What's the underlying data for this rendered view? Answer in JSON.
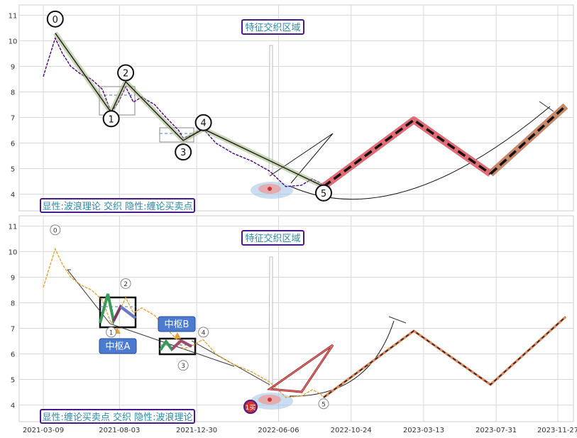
{
  "chart_data": [
    {
      "type": "line",
      "panel": "top",
      "x_tick_labels": [],
      "y_ticks": [
        4,
        5,
        6,
        7,
        8,
        9,
        10,
        11
      ],
      "ylim": [
        3.35,
        11.4
      ],
      "x_dates": [
        "2021-03-09",
        "2021-08-03",
        "2021-12-30",
        "2022-06-06",
        "2022-10-24",
        "2023-03-13",
        "2023-07-31",
        "2023-11-27"
      ],
      "grid": true,
      "annotations": {
        "region_title": "特征交织区域",
        "bottom_caption": "显性:波浪理论 交织 隐性:缠论买卖点",
        "wave_labels": [
          {
            "text": "0",
            "date": "2021-04-01",
            "y": 10.85
          },
          {
            "text": "1",
            "date": "2021-07-18",
            "y": 6.95
          },
          {
            "text": "2",
            "date": "2021-08-15",
            "y": 8.75
          },
          {
            "text": "3",
            "date": "2021-12-04",
            "y": 5.65
          },
          {
            "text": "4",
            "date": "2022-01-12",
            "y": 6.8
          },
          {
            "text": "5",
            "date": "2022-09-01",
            "y": 4.05
          }
        ]
      },
      "series": [
        {
          "role": "price",
          "color": "#4b0082",
          "x": [
            "2021-03-09",
            "2021-03-18",
            "2021-04-01",
            "2021-04-15",
            "2021-05-01",
            "2021-05-20",
            "2021-06-10",
            "2021-07-01",
            "2021-07-18",
            "2021-08-01",
            "2021-08-15",
            "2021-08-30",
            "2021-09-15",
            "2021-10-10",
            "2021-11-01",
            "2021-11-25",
            "2021-12-04",
            "2021-12-20",
            "2022-01-05",
            "2022-01-12",
            "2022-02-05",
            "2022-03-10",
            "2022-04-15",
            "2022-05-20",
            "2022-06-20",
            "2022-07-20",
            "2022-08-10",
            "2022-08-25",
            "2022-09-01"
          ],
          "y": [
            8.6,
            9.2,
            10.1,
            9.5,
            9.0,
            8.7,
            8.5,
            8.1,
            7.2,
            7.6,
            8.2,
            7.6,
            7.8,
            7.5,
            7.0,
            6.5,
            6.2,
            6.3,
            6.5,
            6.55,
            6.0,
            5.6,
            5.3,
            4.9,
            4.3,
            4.35,
            4.6,
            4.45,
            4.3
          ]
        },
        {
          "role": "wave",
          "color": "#1a1a1a",
          "x": [
            "2021-04-01",
            "2021-07-18",
            "2021-08-15",
            "2021-12-04",
            "2022-01-12",
            "2022-09-01"
          ],
          "y": [
            10.3,
            7.2,
            8.4,
            6.1,
            6.55,
            4.3
          ]
        },
        {
          "role": "forecast",
          "color": "#e06b75",
          "x": [
            "2022-09-01",
            "2023-02-22",
            "2023-07-20",
            "2023-12-12"
          ],
          "y": [
            4.3,
            6.9,
            4.8,
            7.45
          ]
        }
      ]
    },
    {
      "type": "line",
      "panel": "bottom",
      "x_tick_labels": [
        "2021-03-09",
        "2021-08-03",
        "2021-12-30",
        "2022-06-06",
        "2022-10-24",
        "2023-03-13",
        "2023-07-31",
        "2023-11-27"
      ],
      "y_ticks": [
        4,
        5,
        6,
        7,
        8,
        9,
        10,
        11
      ],
      "ylim": [
        3.35,
        11.4
      ],
      "grid": true,
      "annotations": {
        "region_title": "特征交织区域",
        "bottom_caption": "显性:缠论买卖点 交织 隐性:波浪理论",
        "pivot_labels": [
          "中枢A",
          "中枢B"
        ],
        "wave_labels": [
          {
            "text": "0",
            "date": "2021-04-01",
            "y": 10.85
          },
          {
            "text": "1",
            "date": "2021-07-18",
            "y": 6.85
          },
          {
            "text": "2",
            "date": "2021-08-15",
            "y": 8.75
          },
          {
            "text": "3",
            "date": "2021-12-04",
            "y": 5.55
          },
          {
            "text": "4",
            "date": "2022-01-12",
            "y": 6.85
          },
          {
            "text": "5",
            "date": "2022-09-01",
            "y": 4.05
          }
        ],
        "buy_point_label": "1买"
      },
      "series": [
        {
          "role": "price",
          "color": "#e8a33a",
          "x": [
            "2021-03-09",
            "2021-03-18",
            "2021-04-01",
            "2021-04-15",
            "2021-05-01",
            "2021-05-20",
            "2021-06-10",
            "2021-07-01",
            "2021-07-18",
            "2021-08-01",
            "2021-08-15",
            "2021-08-30",
            "2021-09-15",
            "2021-10-10",
            "2021-11-01",
            "2021-11-25",
            "2021-12-04",
            "2021-12-20",
            "2022-01-05",
            "2022-01-12",
            "2022-02-05",
            "2022-03-10",
            "2022-04-15",
            "2022-05-20",
            "2022-06-20",
            "2022-07-20",
            "2022-08-10",
            "2022-08-25",
            "2022-09-01"
          ],
          "y": [
            8.6,
            9.2,
            10.1,
            9.5,
            9.0,
            8.7,
            8.5,
            8.1,
            7.2,
            7.6,
            8.2,
            7.6,
            7.8,
            7.5,
            7.0,
            6.5,
            6.2,
            6.3,
            6.5,
            6.55,
            6.0,
            5.6,
            5.3,
            4.9,
            4.3,
            4.35,
            4.6,
            4.45,
            4.3
          ]
        },
        {
          "role": "forecast",
          "color": "#e08a60",
          "x": [
            "2022-09-01",
            "2023-02-22",
            "2023-07-20",
            "2023-12-12"
          ],
          "y": [
            4.3,
            6.9,
            4.8,
            7.45
          ]
        }
      ]
    }
  ]
}
